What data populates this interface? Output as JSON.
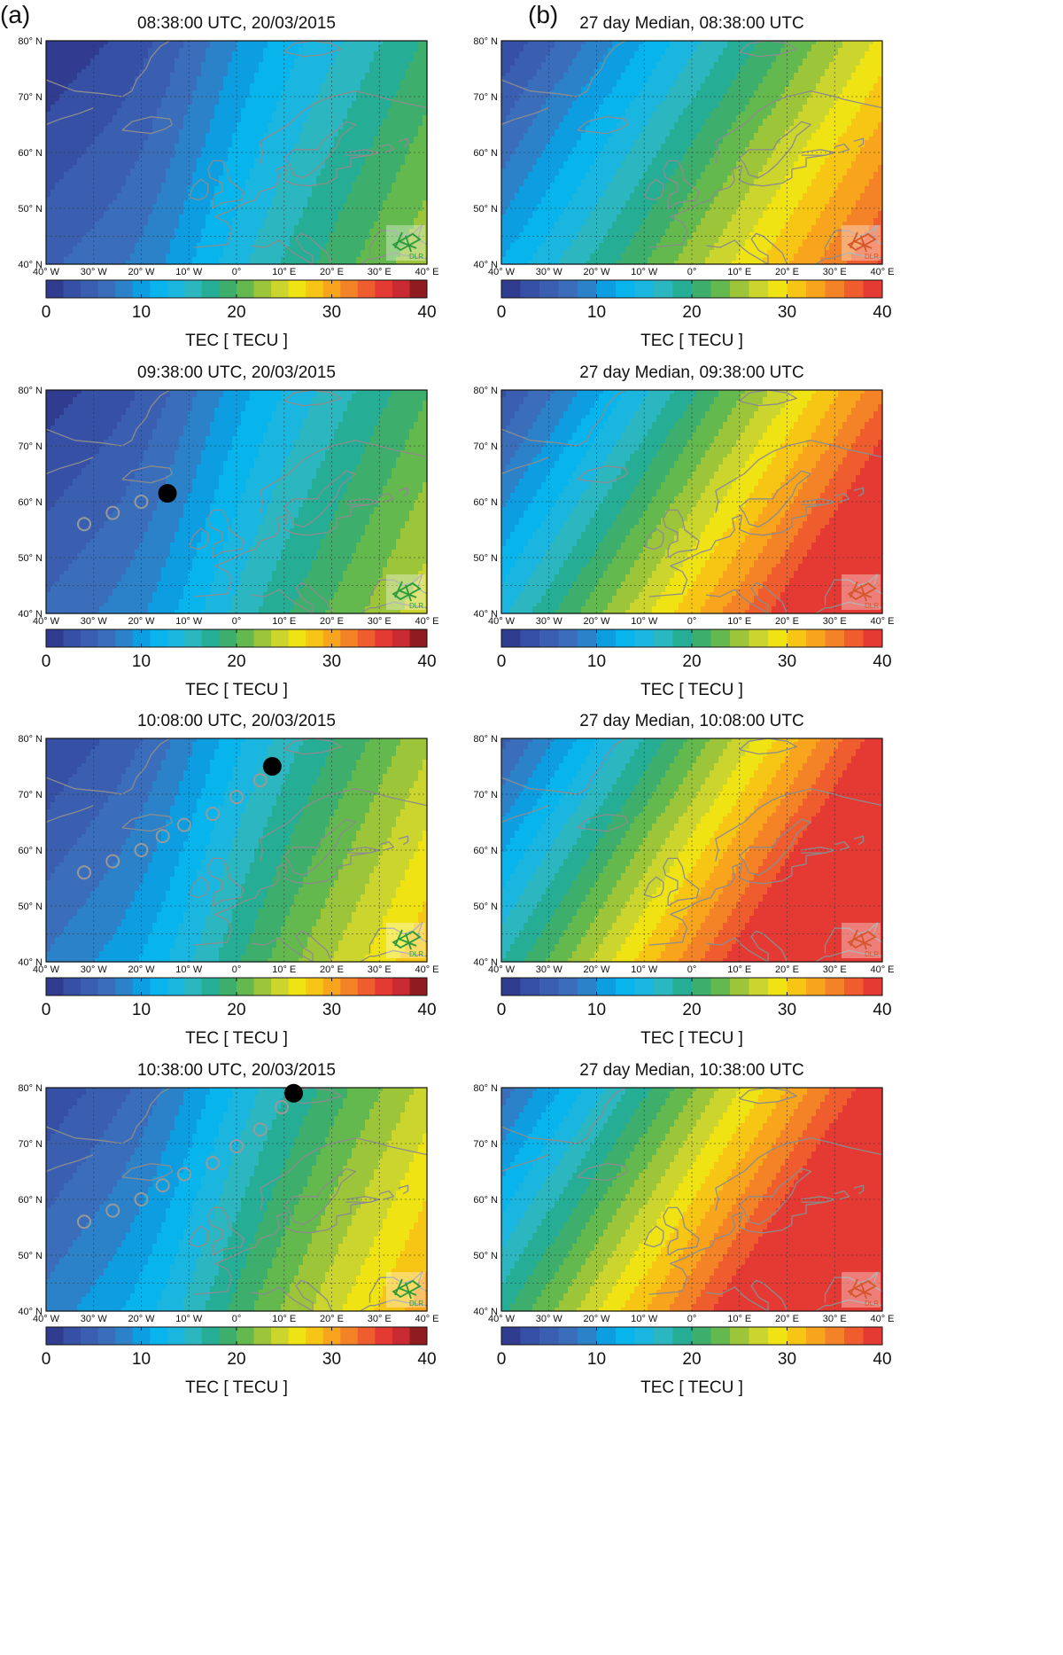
{
  "columns": [
    {
      "label": "(a)"
    },
    {
      "label": "(b)"
    }
  ],
  "panels": [
    {
      "id": "a1",
      "title": "08:38:00 UTC, 20/03/2015",
      "logo": "DLR"
    },
    {
      "id": "b1",
      "title": "27 day Median, 08:38:00 UTC",
      "logo": "DLR"
    },
    {
      "id": "a2",
      "title": "09:38:00 UTC, 20/03/2015",
      "logo": "DLR"
    },
    {
      "id": "b2",
      "title": "27 day Median, 09:38:00 UTC",
      "logo": "DLR"
    },
    {
      "id": "a3",
      "title": "10:08:00 UTC, 20/03/2015",
      "logo": "DLR"
    },
    {
      "id": "b3",
      "title": "27 day Median, 10:08:00 UTC",
      "logo": "DLR"
    },
    {
      "id": "a4",
      "title": "10:38:00 UTC, 20/03/2015",
      "logo": "DLR"
    },
    {
      "id": "b4",
      "title": "27 day Median, 10:38:00 UTC",
      "logo": "DLR"
    }
  ],
  "axes": {
    "lat_ticks": [
      "40° N",
      "50° N",
      "60° N",
      "70° N",
      "80° N"
    ],
    "lon_ticks": [
      "40° W",
      "30° W",
      "20° W",
      "10° W",
      "0°",
      "10° E",
      "20° E",
      "30° E",
      "40° E"
    ]
  },
  "colorbar": {
    "label": "TEC [ TECU ]",
    "ticks": [
      "0",
      "10",
      "20",
      "30",
      "40"
    ],
    "colors_a": [
      "#303c90",
      "#3550a4",
      "#3b5fb0",
      "#3a6dba",
      "#2b82c9",
      "#0d9ee2",
      "#08b4ec",
      "#1ab6e0",
      "#2bb6c0",
      "#25ae95",
      "#3dae6c",
      "#63b84e",
      "#9cc53a",
      "#cbd52e",
      "#f0e314",
      "#f7c514",
      "#f8a41d",
      "#f48227",
      "#ef5d2f",
      "#e53a34",
      "#c92a31",
      "#8f1d1f"
    ],
    "colors_b": [
      "#303c90",
      "#3550a4",
      "#3b5fb0",
      "#3a6dba",
      "#2b82c9",
      "#0d9ee2",
      "#08b4ec",
      "#1ab6e0",
      "#2bb6c0",
      "#25ae95",
      "#3dae6c",
      "#63b84e",
      "#9cc53a",
      "#cbd52e",
      "#f0e314",
      "#f7c514",
      "#f8a41d",
      "#f48227",
      "#ef5d2f",
      "#e53a34"
    ]
  },
  "colors": {
    "coast": "#8c8c8c",
    "marker_track": "#999999",
    "marker_current": "#000000",
    "logo_green": "#2a9a3a",
    "logo_orange": "#d4562a"
  },
  "markers": {
    "a2": {
      "track": [
        [
          -32,
          56
        ],
        [
          -26,
          58
        ],
        [
          -20,
          60
        ]
      ],
      "current": [
        -14.5,
        61.5
      ]
    },
    "a3": {
      "track": [
        [
          -32,
          56
        ],
        [
          -26,
          58
        ],
        [
          -20,
          60
        ],
        [
          -15.5,
          62.5
        ],
        [
          -11,
          64.5
        ],
        [
          -5,
          66.5
        ],
        [
          0,
          69.5
        ],
        [
          5,
          72.5
        ]
      ],
      "current": [
        7.5,
        75
      ]
    },
    "a4": {
      "track": [
        [
          -32,
          56
        ],
        [
          -26,
          58
        ],
        [
          -20,
          60
        ],
        [
          -15.5,
          62.5
        ],
        [
          -11,
          64.5
        ],
        [
          -5,
          66.5
        ],
        [
          0,
          69.5
        ],
        [
          5,
          72.5
        ],
        [
          9.5,
          76.5
        ]
      ],
      "current": [
        12,
        79
      ]
    }
  }
}
